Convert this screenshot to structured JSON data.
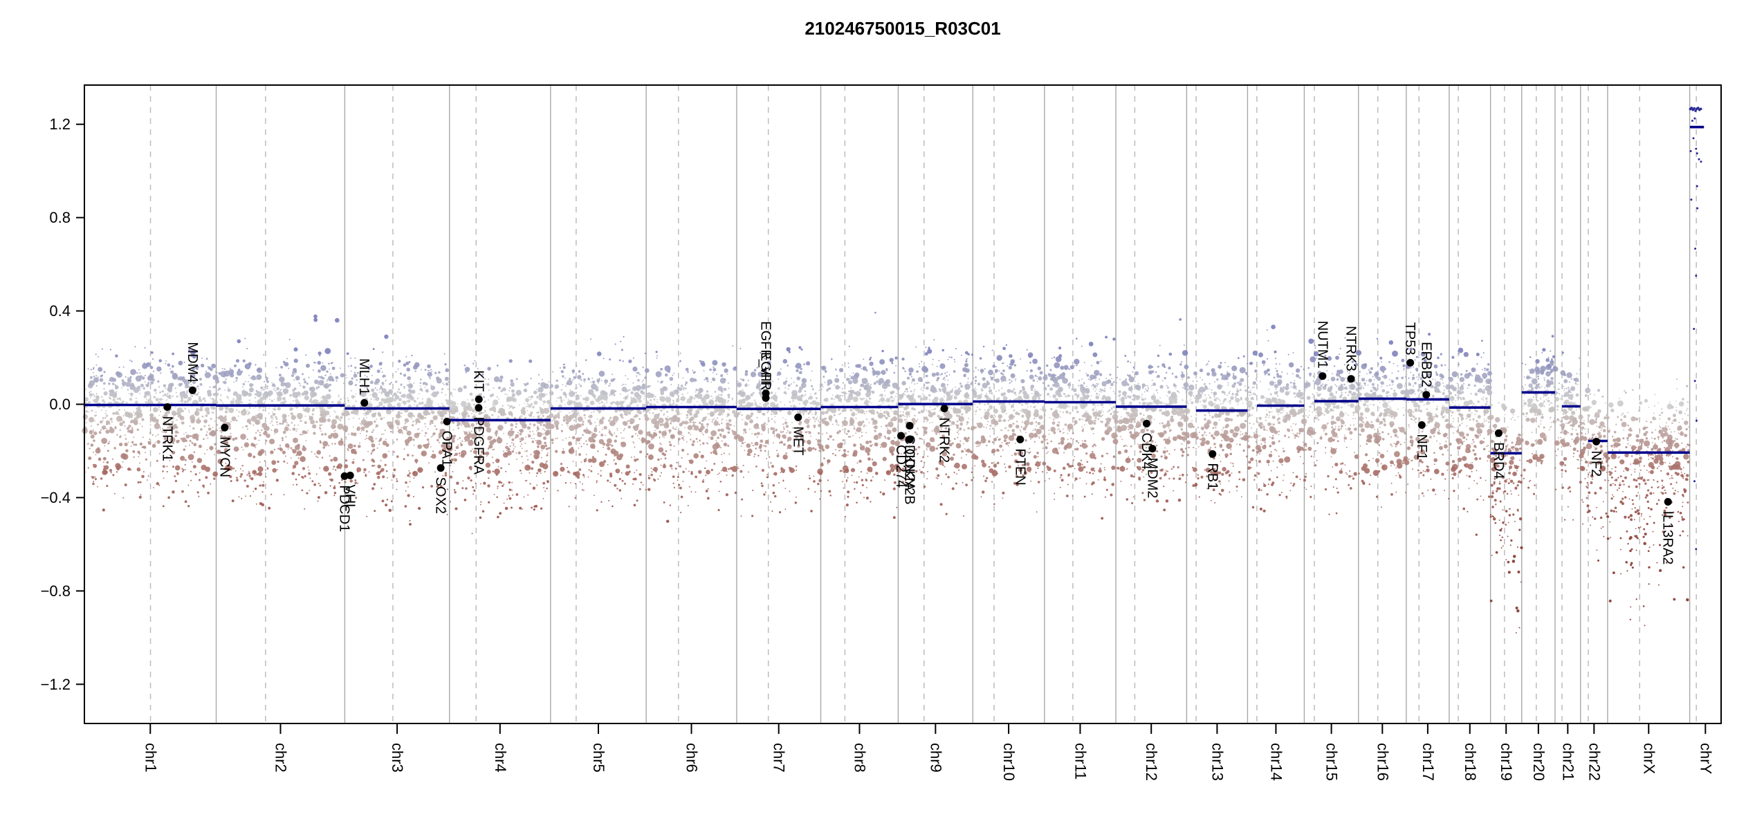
{
  "title": "210246750015_R03C01",
  "chart_data": {
    "type": "scatter",
    "title": "210246750015_R03C01",
    "xlabel": "",
    "ylabel": "",
    "ylim": [
      -1.368,
      1.368
    ],
    "grid": false,
    "y_axis": {
      "tick_values": [
        1.2,
        0.8,
        0.4,
        0.0,
        -0.4,
        -0.8,
        -1.2
      ],
      "tick_labels": [
        "1.2",
        "0.8",
        "0.4",
        "0.0",
        "−0.4",
        "−0.8",
        "−1.2"
      ]
    },
    "colors": {
      "segment": "#00008B",
      "gene_marker": "#000000",
      "boundary_line": "#a8a8a8",
      "centromere_line": "#bcbcbc",
      "axis": "#000000",
      "point_neutral": "#c9c9c9",
      "point_gain": "#767ab8",
      "point_gain_deep": "#4a4ea6",
      "point_loss": "#a4665e",
      "point_loss_deep": "#802f26",
      "chrY_point": "#1f1f90"
    },
    "chromosomes": [
      {
        "name": "chr1",
        "length_mb": 249.3,
        "centromere_mb": 125.0,
        "segment": {
          "start_mb": 0,
          "end_mb": 249.3,
          "value": -0.003
        }
      },
      {
        "name": "chr2",
        "length_mb": 243.2,
        "centromere_mb": 93.3,
        "segment": {
          "start_mb": 0,
          "end_mb": 243.2,
          "value": -0.005
        }
      },
      {
        "name": "chr3",
        "length_mb": 198.0,
        "centromere_mb": 91.0,
        "segment": {
          "start_mb": 0,
          "end_mb": 198.0,
          "value": -0.018
        }
      },
      {
        "name": "chr4",
        "length_mb": 191.2,
        "centromere_mb": 50.4,
        "segment": {
          "start_mb": 0,
          "end_mb": 191.2,
          "value": -0.068
        }
      },
      {
        "name": "chr5",
        "length_mb": 180.9,
        "centromere_mb": 48.4,
        "segment": {
          "start_mb": 0,
          "end_mb": 180.9,
          "value": -0.018
        }
      },
      {
        "name": "chr6",
        "length_mb": 171.1,
        "centromere_mb": 61.0,
        "segment": {
          "start_mb": 0,
          "end_mb": 171.1,
          "value": -0.012
        }
      },
      {
        "name": "chr7",
        "length_mb": 159.1,
        "centromere_mb": 59.9,
        "segment": {
          "start_mb": 0,
          "end_mb": 159.1,
          "value": -0.02
        }
      },
      {
        "name": "chr8",
        "length_mb": 146.4,
        "centromere_mb": 45.6,
        "segment": {
          "start_mb": 0,
          "end_mb": 146.4,
          "value": -0.012
        }
      },
      {
        "name": "chr9",
        "length_mb": 141.2,
        "centromere_mb": 49.0,
        "segment": {
          "start_mb": 0,
          "end_mb": 141.2,
          "value": 0.001
        }
      },
      {
        "name": "chr10",
        "length_mb": 135.5,
        "centromere_mb": 40.2,
        "segment": {
          "start_mb": 0,
          "end_mb": 135.5,
          "value": 0.012
        }
      },
      {
        "name": "chr11",
        "length_mb": 135.0,
        "centromere_mb": 53.7,
        "segment": {
          "start_mb": 0,
          "end_mb": 135.0,
          "value": 0.009
        }
      },
      {
        "name": "chr12",
        "length_mb": 133.9,
        "centromere_mb": 35.8,
        "segment": {
          "start_mb": 0,
          "end_mb": 133.9,
          "value": -0.01
        }
      },
      {
        "name": "chr13",
        "length_mb": 115.2,
        "centromere_mb": 17.9,
        "segment": {
          "start_mb": 17.9,
          "end_mb": 115.2,
          "value": -0.027
        }
      },
      {
        "name": "chr14",
        "length_mb": 107.3,
        "centromere_mb": 17.6,
        "segment": {
          "start_mb": 17.6,
          "end_mb": 107.3,
          "value": -0.006
        }
      },
      {
        "name": "chr15",
        "length_mb": 102.5,
        "centromere_mb": 19.0,
        "segment": {
          "start_mb": 19.0,
          "end_mb": 102.5,
          "value": 0.013
        }
      },
      {
        "name": "chr16",
        "length_mb": 90.4,
        "centromere_mb": 36.6,
        "segment": {
          "start_mb": 0,
          "end_mb": 90.4,
          "value": 0.024
        }
      },
      {
        "name": "chr17",
        "length_mb": 81.2,
        "centromere_mb": 24.0,
        "segment": {
          "start_mb": 0,
          "end_mb": 81.2,
          "value": 0.021
        }
      },
      {
        "name": "chr18",
        "length_mb": 78.1,
        "centromere_mb": 17.2,
        "segment": {
          "start_mb": 0,
          "end_mb": 78.1,
          "value": -0.014
        },
        "scatter": {
          "tail_depth": 0.65
        }
      },
      {
        "name": "chr19",
        "length_mb": 59.1,
        "centromere_mb": 26.5,
        "segment": {
          "start_mb": 0,
          "end_mb": 59.1,
          "value": -0.21
        },
        "scatter": {
          "sigma": 0.125,
          "tail_p": 0.2,
          "tail_depth": 0.85
        }
      },
      {
        "name": "chr20",
        "length_mb": 63.0,
        "centromere_mb": 27.5,
        "segment": {
          "start_mb": 0,
          "end_mb": 63.0,
          "value": 0.051
        },
        "scatter": {
          "sigma": 0.09
        }
      },
      {
        "name": "chr21",
        "length_mb": 48.1,
        "centromere_mb": 13.2,
        "segment": {
          "start_mb": 13.2,
          "end_mb": 48.1,
          "value": -0.009
        },
        "scatter": {
          "tail_depth": 0.55
        }
      },
      {
        "name": "chr22",
        "length_mb": 51.3,
        "centromere_mb": 14.7,
        "segment": {
          "start_mb": 14.7,
          "end_mb": 51.3,
          "value": -0.157
        },
        "scatter": {
          "sigma": 0.11,
          "tail_depth": 0.6
        }
      },
      {
        "name": "chrX",
        "length_mb": 155.3,
        "centromere_mb": 60.6,
        "segment": {
          "start_mb": 0,
          "end_mb": 155.3,
          "value": -0.207
        },
        "scatter": {
          "sigma": 0.12,
          "tail_p": 0.13,
          "tail_depth": 0.8
        }
      },
      {
        "name": "chrY",
        "length_mb": 59.4,
        "centromere_mb": 12.5,
        "segment": {
          "start_mb": 0.5,
          "end_mb": 27.0,
          "value": 1.188
        },
        "scatter": {
          "none": true
        }
      }
    ],
    "genes": [
      {
        "name": "NTRK1",
        "chr": "chr1",
        "mb": 156.8,
        "value": -0.012,
        "side": "below"
      },
      {
        "name": "MDM4",
        "chr": "chr1",
        "mb": 204.5,
        "value": 0.06,
        "side": "above"
      },
      {
        "name": "MYCN",
        "chr": "chr2",
        "mb": 16.1,
        "value": -0.1,
        "side": "below"
      },
      {
        "name": "PDCD1",
        "chr": "chr2",
        "mb": 242.8,
        "value": -0.308,
        "side": "below"
      },
      {
        "name": "VHL",
        "chr": "chr3",
        "mb": 10.2,
        "value": -0.305,
        "side": "below"
      },
      {
        "name": "MLH1",
        "chr": "chr3",
        "mb": 37.0,
        "value": 0.006,
        "side": "above"
      },
      {
        "name": "SOX2",
        "chr": "chr3",
        "mb": 181.4,
        "value": -0.273,
        "side": "below"
      },
      {
        "name": "OPA1",
        "chr": "chr3",
        "mb": 193.3,
        "value": -0.074,
        "side": "below"
      },
      {
        "name": "PDGFRA",
        "chr": "chr4",
        "mb": 55.1,
        "value": -0.015,
        "side": "below"
      },
      {
        "name": "KIT",
        "chr": "chr4",
        "mb": 55.5,
        "value": 0.021,
        "side": "above"
      },
      {
        "name": "EGFR",
        "chr": "chr7",
        "mb": 55.1,
        "value": 0.027,
        "side": "above"
      },
      {
        "name": "EGFR_vIII",
        "chr": "chr7",
        "mb": 55.2,
        "value": 0.047,
        "side": "above"
      },
      {
        "name": "MET",
        "chr": "chr7",
        "mb": 116.3,
        "value": -0.056,
        "side": "below"
      },
      {
        "name": "CD274",
        "chr": "chr9",
        "mb": 5.4,
        "value": -0.135,
        "side": "below"
      },
      {
        "name": "CDKN2A",
        "chr": "chr9",
        "mb": 21.9,
        "value": -0.092,
        "side": "below"
      },
      {
        "name": "CDKN2B",
        "chr": "chr9",
        "mb": 22.0,
        "value": -0.151,
        "side": "below"
      },
      {
        "name": "NTRK2",
        "chr": "chr9",
        "mb": 87.3,
        "value": -0.018,
        "side": "below"
      },
      {
        "name": "PTEN",
        "chr": "chr10",
        "mb": 89.6,
        "value": -0.151,
        "side": "below"
      },
      {
        "name": "CDK4",
        "chr": "chr12",
        "mb": 58.1,
        "value": -0.083,
        "side": "below"
      },
      {
        "name": "MDM2",
        "chr": "chr12",
        "mb": 69.2,
        "value": -0.19,
        "side": "below"
      },
      {
        "name": "RB1",
        "chr": "chr13",
        "mb": 48.9,
        "value": -0.213,
        "side": "below"
      },
      {
        "name": "NUTM1",
        "chr": "chr15",
        "mb": 34.6,
        "value": 0.121,
        "side": "above"
      },
      {
        "name": "NTRK3",
        "chr": "chr15",
        "mb": 88.4,
        "value": 0.109,
        "side": "above"
      },
      {
        "name": "TP53",
        "chr": "chr17",
        "mb": 7.6,
        "value": 0.178,
        "side": "above"
      },
      {
        "name": "NF1",
        "chr": "chr17",
        "mb": 29.4,
        "value": -0.089,
        "side": "below"
      },
      {
        "name": "ERBB2",
        "chr": "chr17",
        "mb": 37.8,
        "value": 0.041,
        "side": "above"
      },
      {
        "name": "BRD4",
        "chr": "chr19",
        "mb": 15.4,
        "value": -0.124,
        "side": "below"
      },
      {
        "name": "NF2",
        "chr": "chr22",
        "mb": 30.0,
        "value": -0.16,
        "side": "below"
      },
      {
        "name": "IL13RA2",
        "chr": "chrX",
        "mb": 114.2,
        "value": -0.418,
        "side": "below"
      }
    ],
    "chrY_points": [
      {
        "mb": 1.0,
        "value": 1.265
      },
      {
        "mb": 3.5,
        "value": 1.27
      },
      {
        "mb": 6.0,
        "value": 1.262
      },
      {
        "mb": 8.5,
        "value": 1.268
      },
      {
        "mb": 11.0,
        "value": 1.258
      },
      {
        "mb": 13.5,
        "value": 1.266
      },
      {
        "mb": 16.0,
        "value": 1.27
      },
      {
        "mb": 18.5,
        "value": 1.262
      },
      {
        "mb": 21.0,
        "value": 1.266
      },
      {
        "mb": 5.0,
        "value": 1.215
      },
      {
        "mb": 9.5,
        "value": 1.225
      },
      {
        "mb": 7.0,
        "value": 1.14
      },
      {
        "mb": 2.0,
        "value": 1.085
      },
      {
        "mb": 12.0,
        "value": 1.095
      },
      {
        "mb": 14.0,
        "value": 1.075
      },
      {
        "mb": 17.5,
        "value": 1.05
      },
      {
        "mb": 21.5,
        "value": 1.04
      },
      {
        "mb": 14.0,
        "value": 0.935
      },
      {
        "mb": 3.0,
        "value": 0.877
      },
      {
        "mb": 14.5,
        "value": 0.84
      },
      {
        "mb": 10.5,
        "value": 0.667
      },
      {
        "mb": 12.0,
        "value": 0.551
      },
      {
        "mb": 8.0,
        "value": 0.323
      },
      {
        "mb": 10.0,
        "value": 0.1
      },
      {
        "mb": 13.0,
        "value": -0.07
      },
      {
        "mb": 9.0,
        "value": -0.33
      },
      {
        "mb": 12.0,
        "value": -0.62
      }
    ],
    "scatter_defaults": {
      "density_per_mb": 3.1,
      "sigma": 0.105,
      "tail_p": 0.09,
      "tail_depth": 0.5,
      "seed": 1234
    }
  }
}
